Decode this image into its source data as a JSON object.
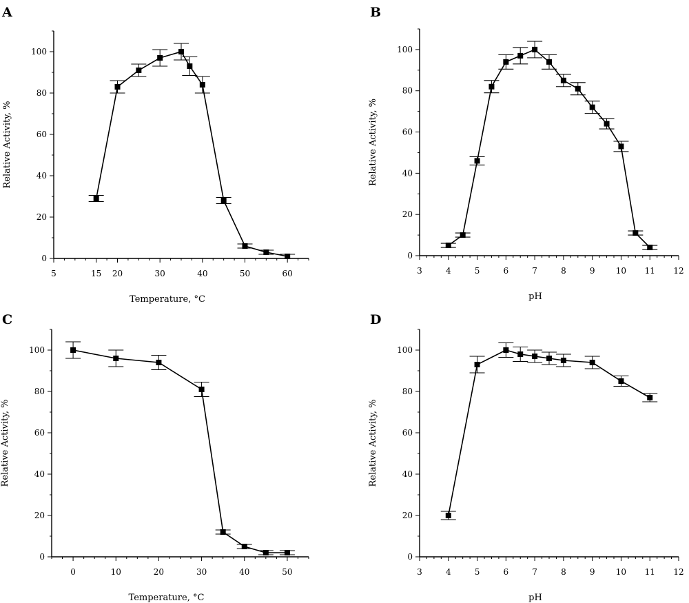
{
  "chart_data": [
    {
      "panel": "A",
      "type": "line",
      "xlabel": "Temperature, °C",
      "ylabel": "Relative Activity, %",
      "xlim": [
        5,
        65
      ],
      "ylim": [
        0,
        110
      ],
      "x_ticks": [
        5,
        15,
        20,
        30,
        40,
        50,
        60
      ],
      "y_ticks": [
        0,
        20,
        40,
        60,
        80,
        100
      ],
      "x": [
        15,
        20,
        25,
        30,
        35,
        37,
        40,
        45,
        50,
        55,
        60
      ],
      "y": [
        29,
        83,
        91,
        97,
        100,
        93,
        84,
        28,
        6,
        3,
        1
      ],
      "err": [
        1.5,
        3,
        3,
        4,
        4,
        4.5,
        4,
        1.5,
        1,
        1,
        1
      ]
    },
    {
      "panel": "B",
      "type": "line",
      "xlabel": "pH",
      "ylabel": "Relative Activity, %",
      "xlim": [
        3,
        12
      ],
      "ylim": [
        0,
        110
      ],
      "x_ticks": [
        3,
        4,
        5,
        6,
        7,
        8,
        9,
        10,
        11,
        12
      ],
      "y_ticks": [
        0,
        20,
        40,
        60,
        80,
        100
      ],
      "x": [
        4,
        4.5,
        5,
        5.5,
        6,
        6.5,
        7,
        7.5,
        8,
        8.5,
        9,
        9.5,
        10,
        10.5,
        11
      ],
      "y": [
        5,
        10,
        46,
        82,
        94,
        97,
        100,
        94,
        85,
        81,
        72,
        64,
        53,
        11,
        4
      ],
      "err": [
        1,
        1,
        2,
        3,
        3.5,
        4,
        4,
        3.5,
        3,
        3,
        3,
        2.5,
        2.5,
        1,
        1
      ]
    },
    {
      "panel": "C",
      "type": "line",
      "xlabel": "Temperature, °C",
      "ylabel": "Relative Activity, %",
      "xlim": [
        -5,
        55
      ],
      "ylim": [
        0,
        110
      ],
      "x_ticks": [
        0,
        10,
        20,
        30,
        40,
        50
      ],
      "y_ticks": [
        0,
        20,
        40,
        60,
        80,
        100
      ],
      "x": [
        0,
        10,
        20,
        30,
        35,
        40,
        45,
        50
      ],
      "y": [
        100,
        96,
        94,
        81,
        12,
        5,
        2,
        2
      ],
      "err": [
        4,
        4,
        3.5,
        3.5,
        1,
        1,
        1,
        1
      ]
    },
    {
      "panel": "D",
      "type": "line",
      "xlabel": "pH",
      "ylabel": "Relative Activity, %",
      "xlim": [
        3,
        12
      ],
      "ylim": [
        0,
        110
      ],
      "y_ticks": [
        0,
        20,
        40,
        60,
        80,
        100
      ],
      "y_tick_labels": [
        "0",
        "20",
        "40",
        "60",
        "80",
        "100"
      ],
      "x_ticks": [
        3,
        4,
        5,
        6,
        7,
        8,
        9,
        10,
        11,
        12
      ],
      "x": [
        4,
        5,
        6,
        6.5,
        7,
        7.5,
        8,
        9,
        10,
        11
      ],
      "y": [
        20,
        93,
        100,
        98,
        97,
        96,
        95,
        94,
        85,
        77
      ],
      "err": [
        2,
        4,
        3.5,
        3.5,
        3,
        3,
        3,
        3,
        2.5,
        2
      ]
    }
  ]
}
